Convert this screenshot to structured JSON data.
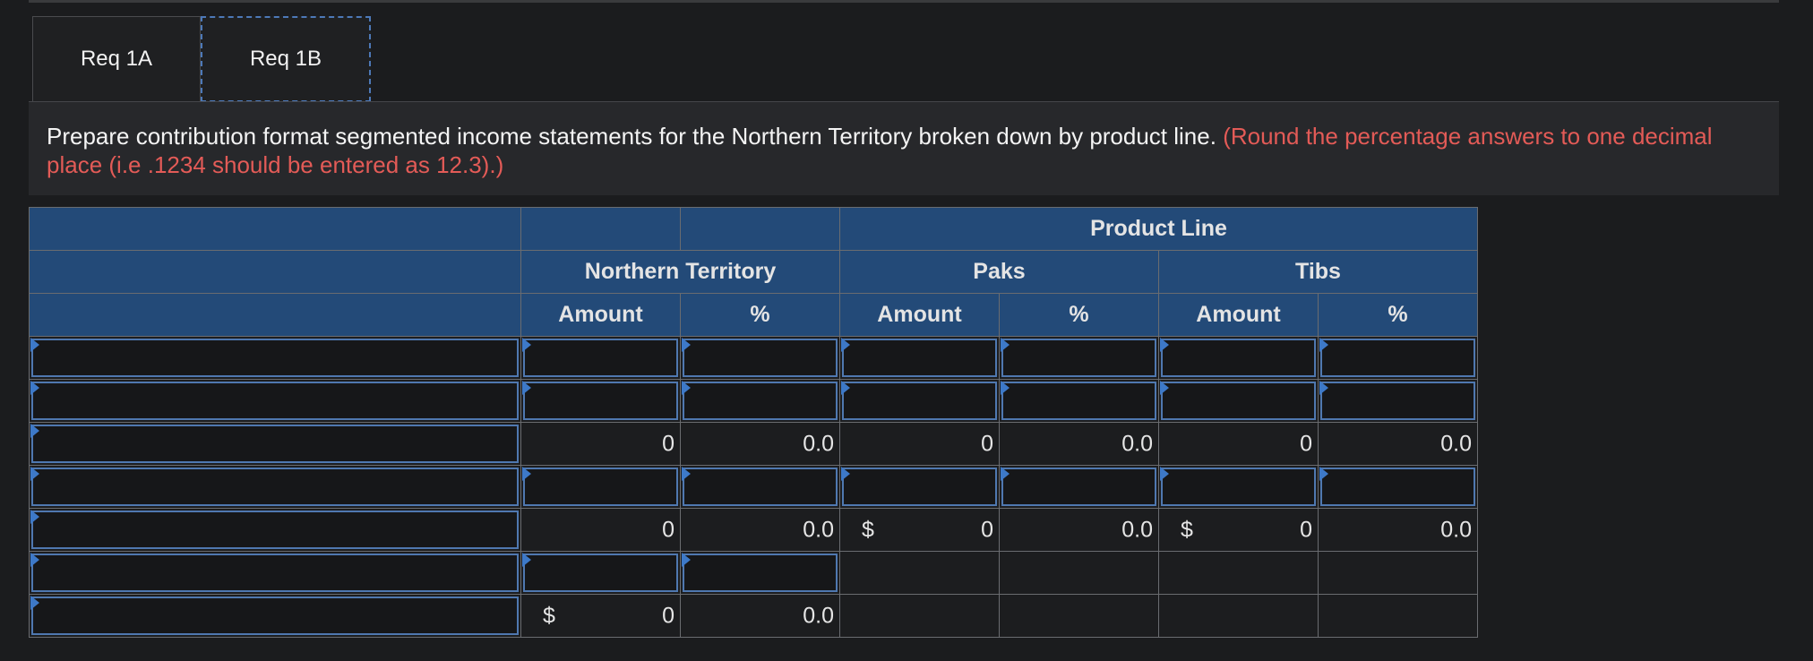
{
  "tabs": [
    {
      "label": "Req 1A",
      "active": false
    },
    {
      "label": "Req 1B",
      "active": true
    }
  ],
  "instructions": {
    "main": "Prepare contribution format segmented income statements for the Northern Territory broken down by product line.",
    "note": "(Round the percentage answers to one decimal place (i.e .1234 should be entered as 12.3).)"
  },
  "table": {
    "group_header": "Product Line",
    "segments": [
      "Northern Territory",
      "Paks",
      "Tibs"
    ],
    "col_amount": "Amount",
    "col_percent": "%",
    "currency": "$",
    "rows": {
      "r3": {
        "nt_amt": "0",
        "nt_pct": "0.0",
        "paks_amt": "0",
        "paks_pct": "0.0",
        "tibs_amt": "0",
        "tibs_pct": "0.0"
      },
      "r5": {
        "nt_amt": "0",
        "nt_pct": "0.0",
        "paks_amt": "0",
        "paks_pct": "0.0",
        "tibs_amt": "0",
        "tibs_pct": "0.0"
      },
      "r7": {
        "nt_amt": "0",
        "nt_pct": "0.0"
      }
    }
  },
  "colors": {
    "header_bg": "#234a78",
    "input_border": "#4f78b0",
    "note_red": "#e35b57",
    "background": "#1b1c1e"
  }
}
